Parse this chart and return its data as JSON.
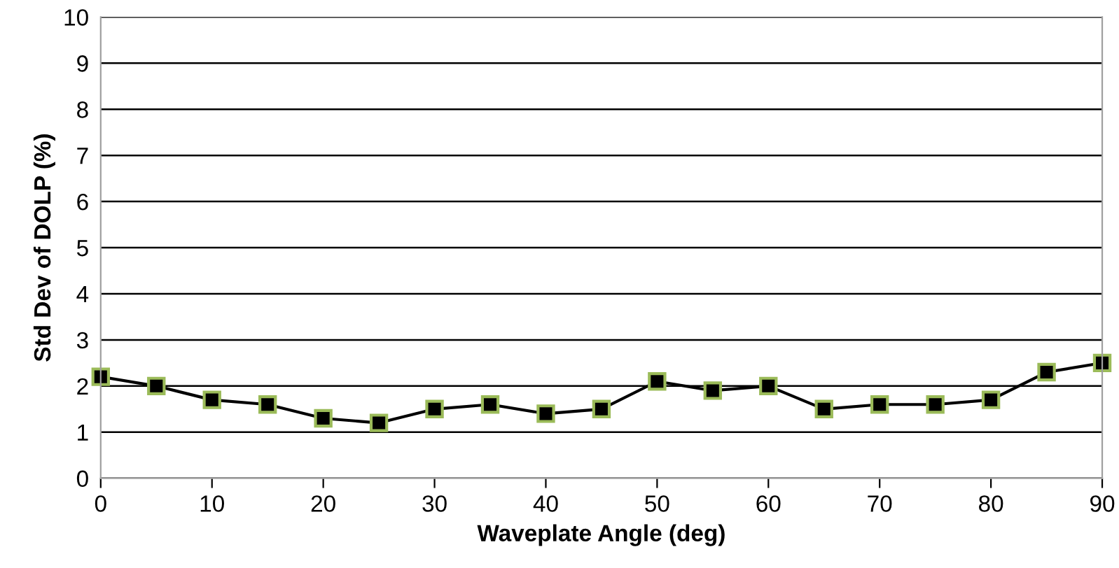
{
  "chart_data": {
    "type": "line",
    "xlabel": "Waveplate Angle (deg)",
    "ylabel": "Std Dev of DOLP (%)",
    "x": [
      0,
      5,
      10,
      15,
      20,
      25,
      30,
      35,
      40,
      45,
      50,
      55,
      60,
      65,
      70,
      75,
      80,
      85,
      90
    ],
    "series": [
      {
        "color": "#000000",
        "values": [
          2.2,
          2.0,
          1.7,
          1.6,
          1.3,
          1.2,
          1.5,
          1.6,
          1.4,
          1.5,
          2.1,
          1.9,
          2.0,
          1.5,
          1.6,
          1.6,
          1.7,
          2.3,
          2.5
        ]
      }
    ],
    "xlim": [
      0,
      90
    ],
    "xticks": [
      0,
      10,
      20,
      30,
      40,
      50,
      60,
      70,
      80,
      90
    ],
    "ylim": [
      0,
      10
    ],
    "yticks": [
      0,
      1,
      2,
      3,
      4,
      5,
      6,
      7,
      8,
      9,
      10
    ],
    "grid": "y",
    "marker": "square",
    "line_style": "solid"
  }
}
